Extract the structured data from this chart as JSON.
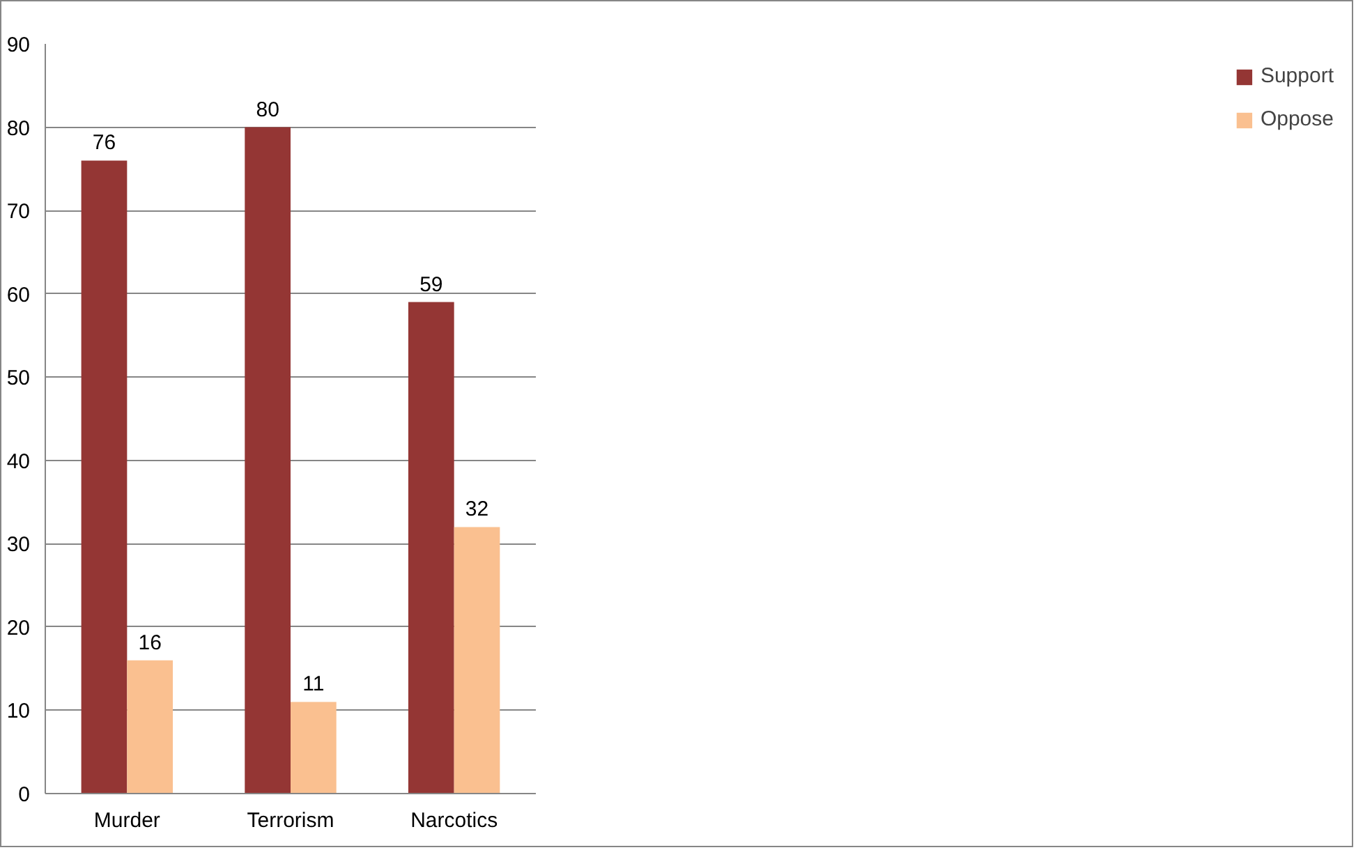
{
  "chart_data": {
    "type": "bar",
    "categories": [
      "Murder",
      "Terrorism",
      "Narcotics"
    ],
    "series": [
      {
        "name": "Support",
        "color": "#943634",
        "values": [
          76,
          80,
          59
        ]
      },
      {
        "name": "Oppose",
        "color": "#fac090",
        "values": [
          16,
          11,
          32
        ]
      }
    ],
    "ylim": [
      0,
      90
    ],
    "yticks": [
      0,
      10,
      20,
      30,
      40,
      50,
      60,
      70,
      80,
      90
    ],
    "grid": "y",
    "legend": "right",
    "data_labels": true
  }
}
